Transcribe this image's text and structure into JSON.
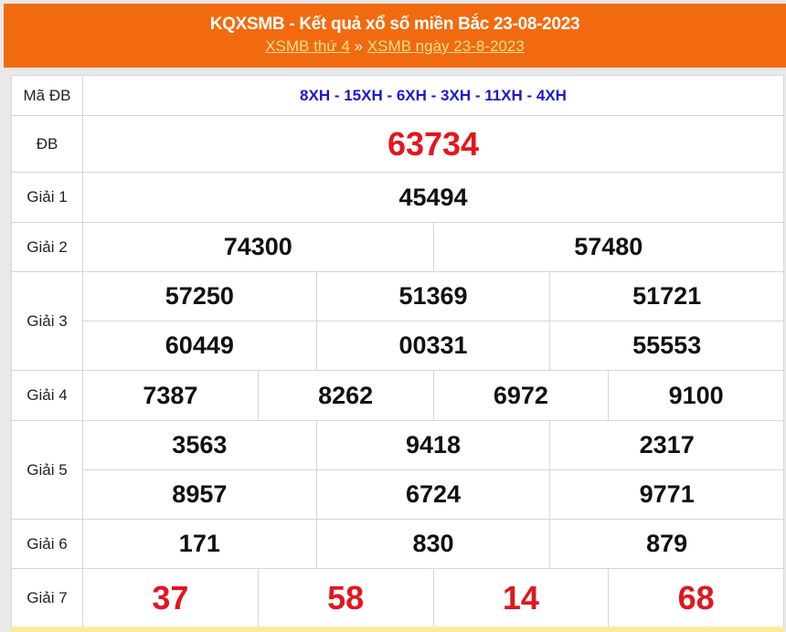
{
  "header": {
    "title": "KQXSMB - Kết quả xổ số miền Bắc 23-08-2023",
    "link1": "XSMB thứ 4",
    "separator": "»",
    "link2": "XSMB ngày 23-8-2023"
  },
  "rows": [
    {
      "label": "Mã ĐB",
      "values": [
        [
          "8XH - 15XH - 6XH - 3XH - 11XH - 4XH"
        ]
      ]
    },
    {
      "label": "ĐB",
      "values": [
        [
          "63734"
        ]
      ]
    },
    {
      "label": "Giải 1",
      "values": [
        [
          "45494"
        ]
      ]
    },
    {
      "label": "Giải 2",
      "values": [
        [
          "74300",
          "57480"
        ]
      ]
    },
    {
      "label": "Giải 3",
      "values": [
        [
          "57250",
          "51369",
          "51721"
        ],
        [
          "60449",
          "00331",
          "55553"
        ]
      ]
    },
    {
      "label": "Giải 4",
      "values": [
        [
          "7387",
          "8262",
          "6972",
          "9100"
        ]
      ]
    },
    {
      "label": "Giải 5",
      "values": [
        [
          "3563",
          "9418",
          "2317"
        ],
        [
          "8957",
          "6724",
          "9771"
        ]
      ]
    },
    {
      "label": "Giải 6",
      "values": [
        [
          "171",
          "830",
          "879"
        ]
      ]
    },
    {
      "label": "Giải 7",
      "values": [
        [
          "37",
          "58",
          "14",
          "68"
        ]
      ]
    }
  ],
  "colors": {
    "header": "#f26a0f",
    "special": "#e2161e",
    "code": "#1a1ad0"
  }
}
